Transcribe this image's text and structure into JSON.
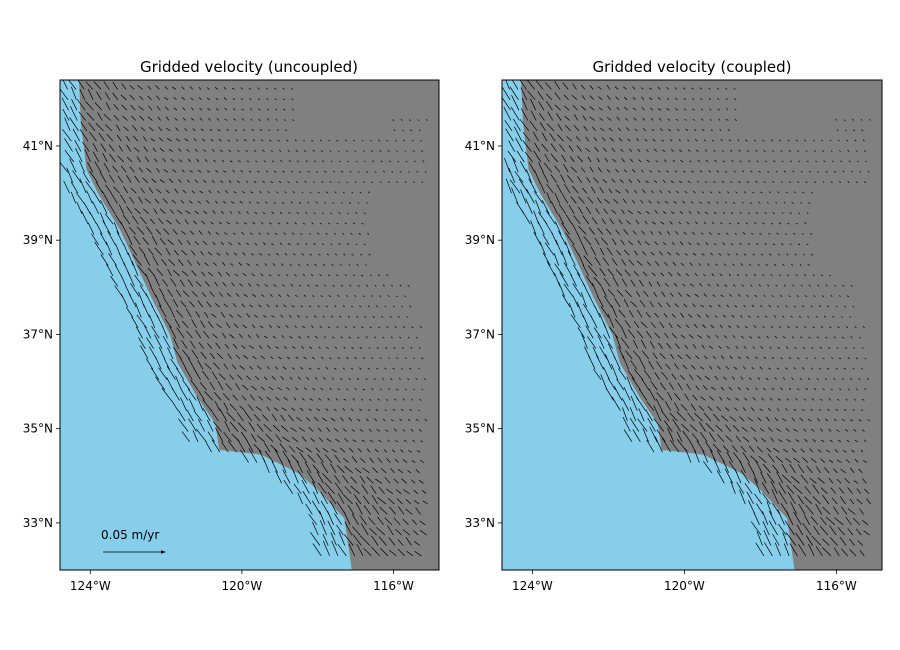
{
  "colors": {
    "ocean": "#87ceeb",
    "land": "#808080",
    "arrow": "#000000",
    "frame": "#000000"
  },
  "panels": [
    {
      "title": "Gridded velocity (uncoupled)",
      "variant": "uncoupled"
    },
    {
      "title": "Gridded velocity (coupled)",
      "variant": "coupled"
    }
  ],
  "scale_key": {
    "label": "0.05 m/yr",
    "value_m_per_yr": 0.05
  },
  "map_extent": {
    "lon_min": -124.8,
    "lon_max": -114.8,
    "lat_min": 32.0,
    "lat_max": 42.4
  },
  "axes": {
    "x_ticks": [
      {
        "value": -124,
        "label": "124°W"
      },
      {
        "value": -120,
        "label": "120°W"
      },
      {
        "value": -116,
        "label": "116°W"
      }
    ],
    "y_ticks": [
      {
        "value": 41,
        "label": "41°N"
      },
      {
        "value": 39,
        "label": "39°N"
      },
      {
        "value": 37,
        "label": "37°N"
      },
      {
        "value": 35,
        "label": "35°N"
      },
      {
        "value": 33,
        "label": "33°N"
      }
    ]
  },
  "coastline_lonlat": [
    [
      -124.3,
      42.4
    ],
    [
      -124.25,
      41.5
    ],
    [
      -124.1,
      40.5
    ],
    [
      -123.8,
      40.0
    ],
    [
      -123.2,
      39.2
    ],
    [
      -122.8,
      38.5
    ],
    [
      -122.4,
      37.8
    ],
    [
      -121.9,
      37.0
    ],
    [
      -121.7,
      36.4
    ],
    [
      -121.2,
      35.7
    ],
    [
      -120.7,
      35.1
    ],
    [
      -120.6,
      34.55
    ],
    [
      -119.5,
      34.45
    ],
    [
      -118.5,
      34.05
    ],
    [
      -118.0,
      33.7
    ],
    [
      -117.3,
      33.1
    ],
    [
      -117.1,
      32.0
    ]
  ]
}
